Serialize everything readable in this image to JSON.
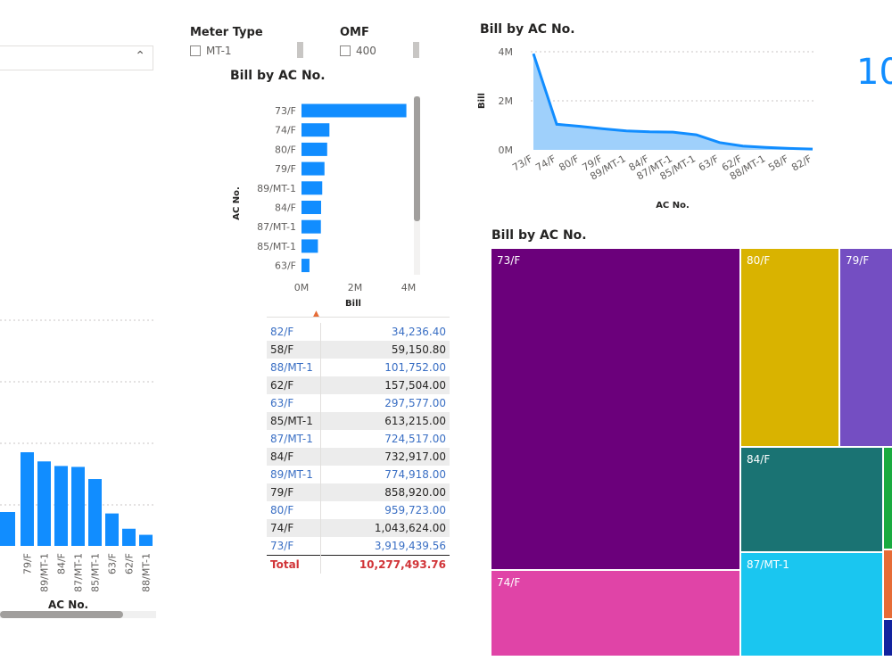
{
  "slicers": {
    "meter_type": {
      "title": "Meter Type",
      "option": "MT-1"
    },
    "omf": {
      "title": "OMF",
      "option": "400"
    }
  },
  "kpi": {
    "visible_text": "10"
  },
  "left_column_chart": {
    "xlabel": "AC No.",
    "categories": [
      "79/F",
      "89/MT-1",
      "84/F",
      "87/MT-1",
      "85/MT-1",
      "63/F",
      "62/F",
      "88/MT-1"
    ]
  },
  "hbar": {
    "title": "Bill by AC No.",
    "ylabel": "AC No.",
    "xlabel": "Bill",
    "ticks": [
      "0M",
      "2M",
      "4M"
    ]
  },
  "area": {
    "title": "Bill by AC No.",
    "ylabel": "Bill",
    "xlabel": "AC No.",
    "yticks": [
      "0M",
      "2M",
      "4M"
    ]
  },
  "table": {
    "rows": [
      {
        "ac": "82/F",
        "bill": "34,236.40"
      },
      {
        "ac": "58/F",
        "bill": "59,150.80"
      },
      {
        "ac": "88/MT-1",
        "bill": "101,752.00"
      },
      {
        "ac": "62/F",
        "bill": "157,504.00"
      },
      {
        "ac": "63/F",
        "bill": "297,577.00"
      },
      {
        "ac": "85/MT-1",
        "bill": "613,215.00"
      },
      {
        "ac": "87/MT-1",
        "bill": "724,517.00"
      },
      {
        "ac": "84/F",
        "bill": "732,917.00"
      },
      {
        "ac": "89/MT-1",
        "bill": "774,918.00"
      },
      {
        "ac": "79/F",
        "bill": "858,920.00"
      },
      {
        "ac": "80/F",
        "bill": "959,723.00"
      },
      {
        "ac": "74/F",
        "bill": "1,043,624.00"
      },
      {
        "ac": "73/F",
        "bill": "3,919,439.56"
      }
    ],
    "total_label": "Total",
    "total_value": "10,277,493.76"
  },
  "treemap": {
    "title": "Bill by AC No.",
    "labels": {
      "t73": "73/F",
      "t80": "80/F",
      "t79": "79/F",
      "t84": "84/F",
      "t87": "87/MT-1",
      "t74": "74/F"
    },
    "colors": {
      "t73": "#6b007b",
      "t80": "#d9b300",
      "t79": "#744ec2",
      "t84": "#1a7373",
      "t87": "#1ac6f0",
      "t74": "#e044a7",
      "c_green": "#1aab40",
      "c_orange": "#e66c37",
      "c_navy": "#12239e"
    }
  },
  "chart_data": [
    {
      "type": "bar",
      "orientation": "horizontal",
      "title": "Bill by AC No.",
      "xlabel": "Bill",
      "ylabel": "AC No.",
      "xlim": [
        0,
        4000000
      ],
      "categories": [
        "73/F",
        "74/F",
        "80/F",
        "79/F",
        "89/MT-1",
        "84/F",
        "87/MT-1",
        "85/MT-1",
        "63/F"
      ],
      "values": [
        3919439.56,
        1043624,
        959723,
        858920,
        774918,
        732917,
        724517,
        613215,
        297577
      ],
      "color": "#118dff"
    },
    {
      "type": "area",
      "title": "Bill by AC No.",
      "xlabel": "AC No.",
      "ylabel": "Bill",
      "ylim": [
        0,
        4000000
      ],
      "categories": [
        "73/F",
        "74/F",
        "80/F",
        "79/F",
        "89/MT-1",
        "84/F",
        "87/MT-1",
        "85/MT-1",
        "63/F",
        "62/F",
        "88/MT-1",
        "58/F",
        "82/F"
      ],
      "values": [
        3919439.56,
        1043624,
        959723,
        858920,
        774918,
        732917,
        724517,
        613215,
        297577,
        157504,
        101752,
        59150.8,
        34236.4
      ],
      "color": "#118dff"
    },
    {
      "type": "bar",
      "title": "",
      "xlabel": "AC No.",
      "categories": [
        "79/F",
        "89/MT-1",
        "84/F",
        "87/MT-1",
        "85/MT-1",
        "63/F",
        "62/F",
        "88/MT-1"
      ],
      "values": [
        858920,
        774918,
        732917,
        724517,
        613215,
        297577,
        157504,
        101752
      ],
      "color": "#118dff"
    }
  ]
}
